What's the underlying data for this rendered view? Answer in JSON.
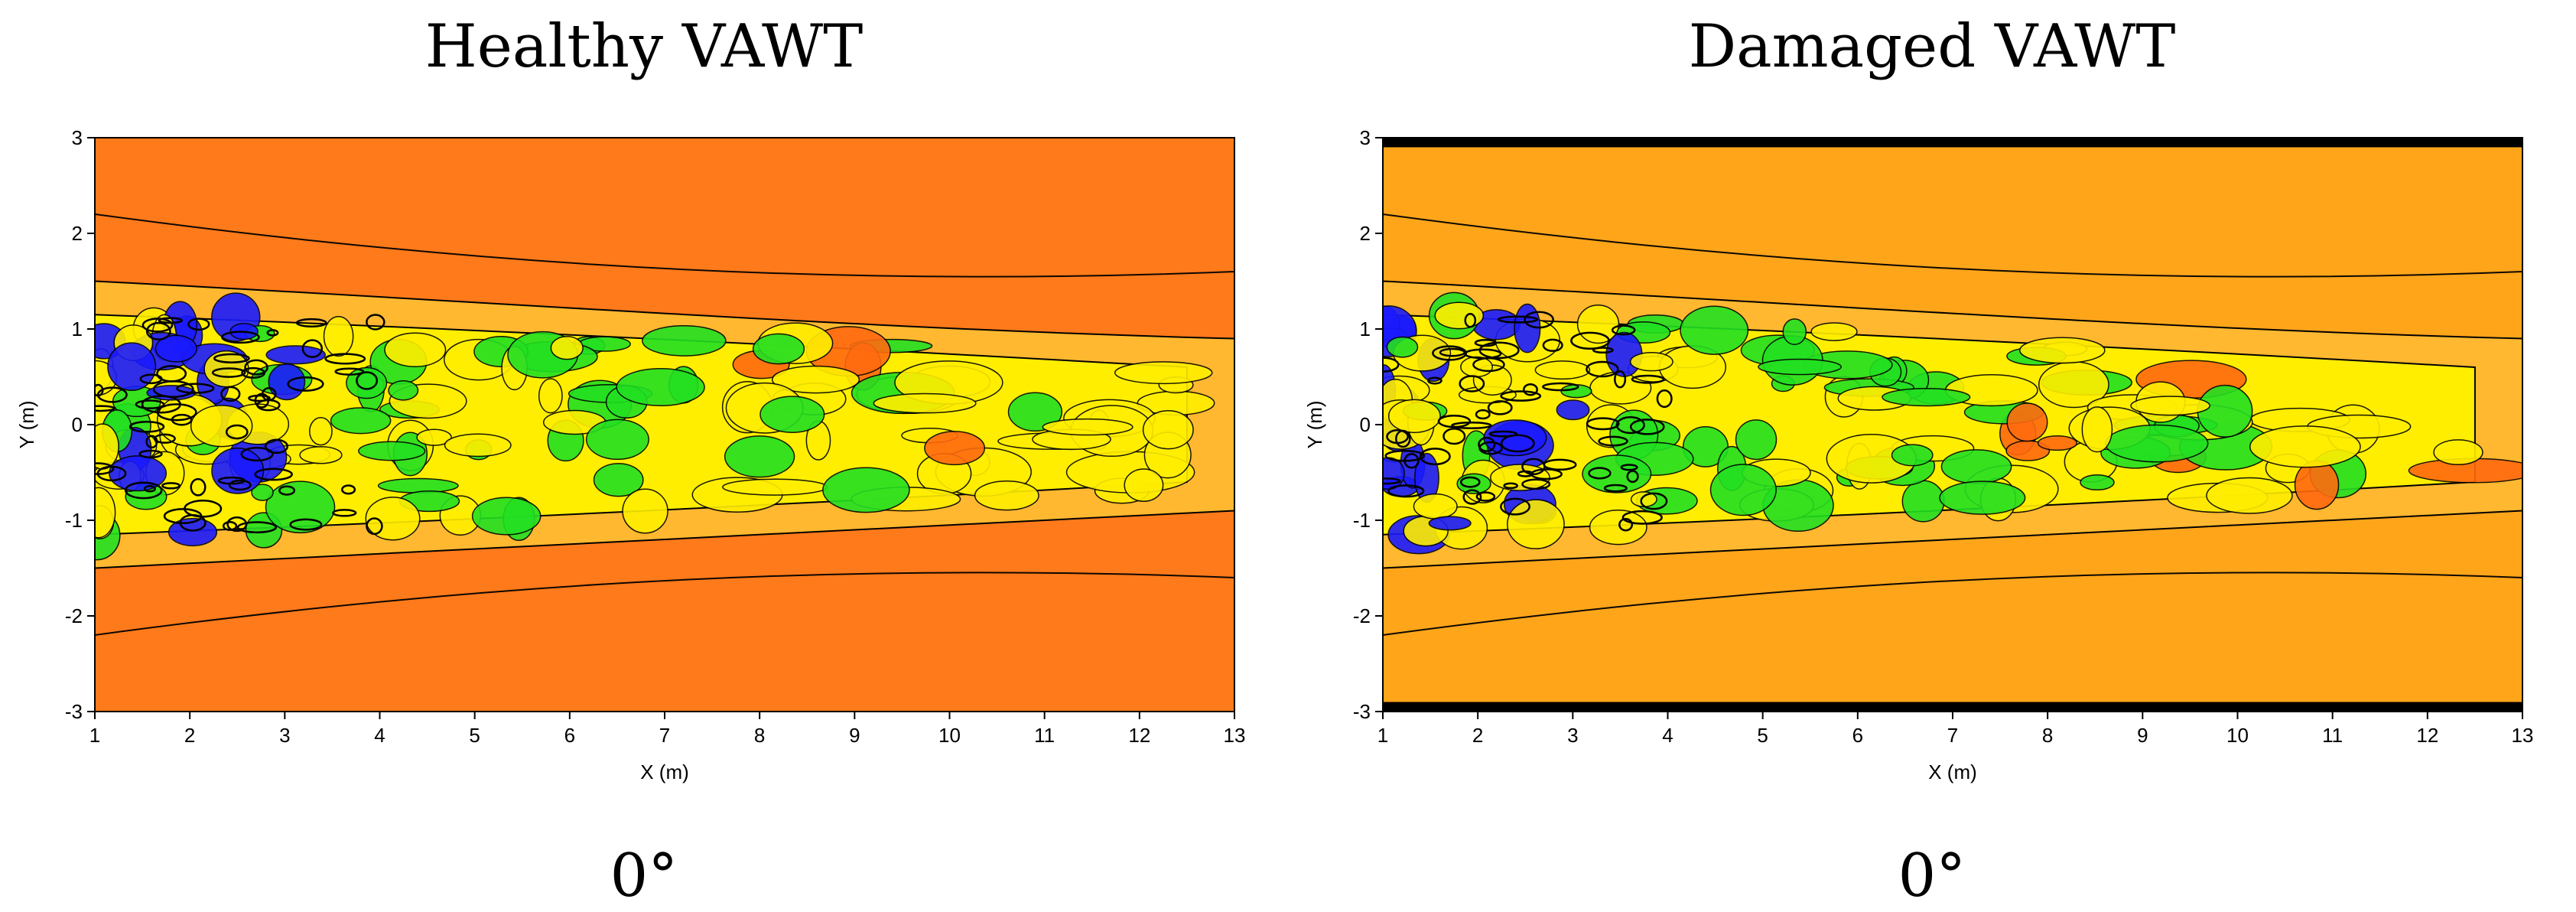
{
  "chart_data": [
    {
      "type": "heatmap",
      "title": "Healthy VAWT",
      "caption": "0°",
      "xlabel": "X (m)",
      "ylabel": "Y (m)",
      "xlim": [
        1,
        13
      ],
      "ylim": [
        -3,
        3
      ],
      "xticks": [
        1,
        2,
        3,
        4,
        5,
        6,
        7,
        8,
        9,
        10,
        11,
        12,
        13
      ],
      "yticks": [
        3,
        2,
        1,
        0,
        -1,
        -2,
        -3
      ],
      "colors": {
        "background": "#ff7a1a",
        "low": "#1a1aff",
        "mid": "#22e022",
        "high": "#ffee00"
      },
      "wake_y_range": [
        -1.2,
        1.2
      ]
    },
    {
      "type": "heatmap",
      "title": "Damaged VAWT",
      "caption": "0°",
      "xlabel": "X (m)",
      "ylabel": "Y (m)",
      "xlim": [
        1,
        13
      ],
      "ylim": [
        -3,
        3
      ],
      "xticks": [
        1,
        2,
        3,
        4,
        5,
        6,
        7,
        8,
        9,
        10,
        11,
        12,
        13
      ],
      "yticks": [
        3,
        2,
        1,
        0,
        -1,
        -2,
        -3
      ],
      "colors": {
        "background": "#ffa51a",
        "low": "#1a1aff",
        "mid": "#22e022",
        "high": "#ffee00"
      },
      "wake_y_range": [
        -1.2,
        1.2
      ]
    }
  ]
}
